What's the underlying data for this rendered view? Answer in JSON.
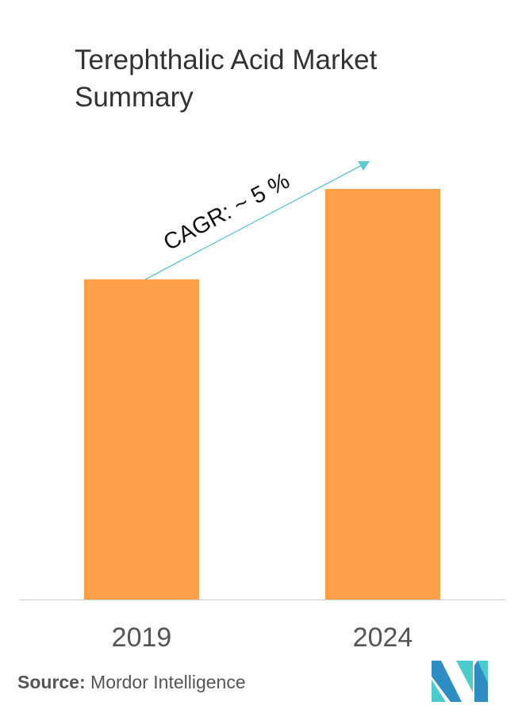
{
  "chart_data": {
    "type": "bar",
    "title": "Terephthalic Acid Market Summary",
    "categories": [
      "2019",
      "2024"
    ],
    "values": [
      78,
      100
    ],
    "xlabel": "",
    "ylabel": "",
    "ylim": [
      0,
      100
    ],
    "grid": false,
    "annotation": "CAGR: ~ 5 %",
    "colors": {
      "bar": "#FBA047",
      "arrow": "#5AC8CC",
      "axis": "#cccccc"
    }
  },
  "source": {
    "label": "Source:",
    "text": "Mordor Intelligence"
  },
  "logo": {
    "colors": [
      "#2E8DC2",
      "#4BCBCE"
    ]
  }
}
